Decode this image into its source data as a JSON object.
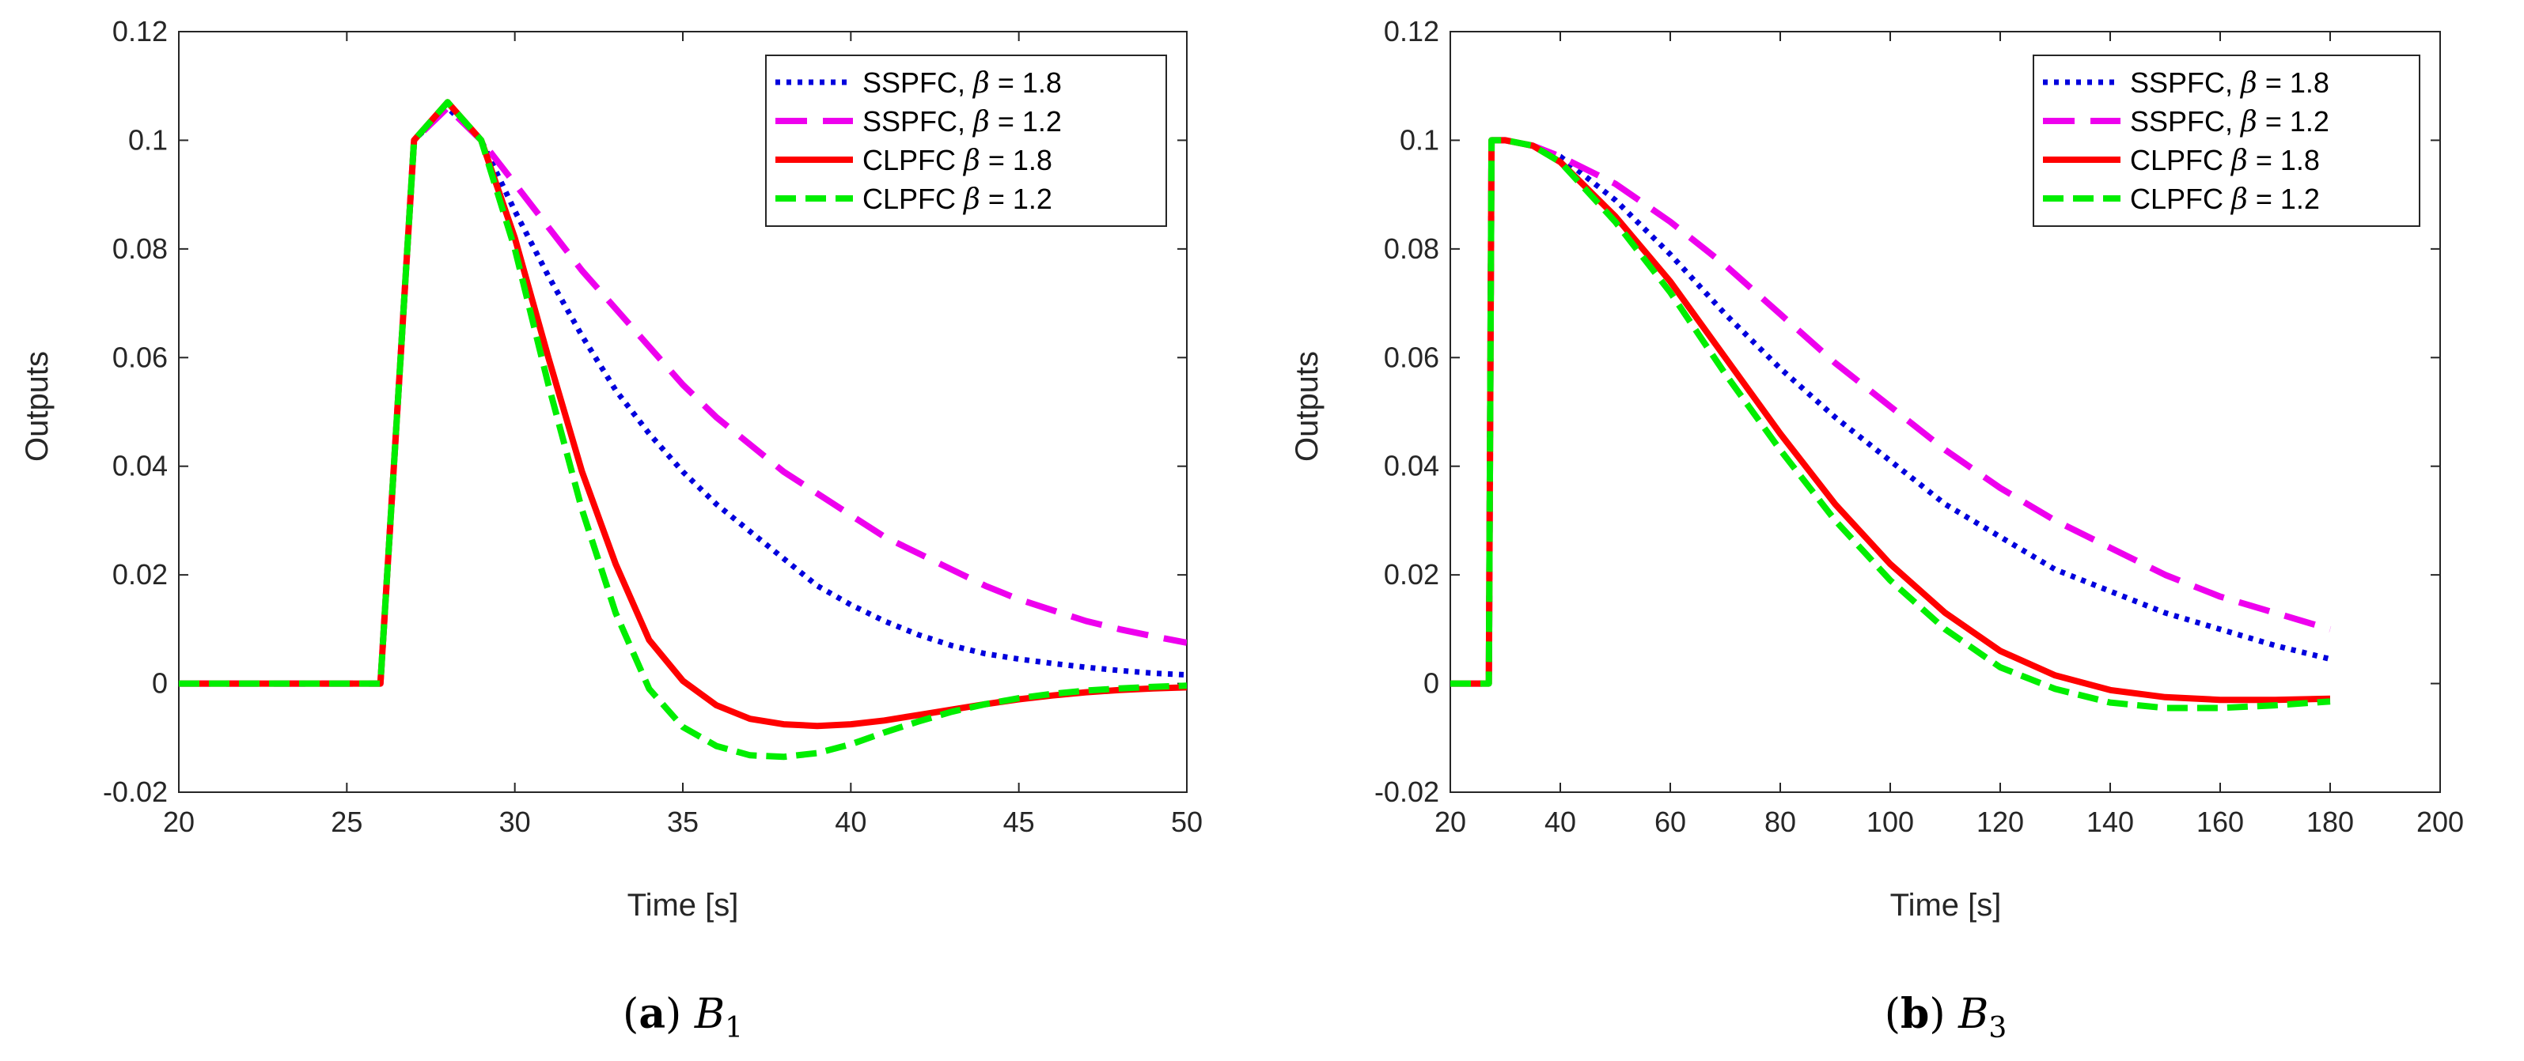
{
  "colors": {
    "ssp18": "#0000dd",
    "ssp12": "#ee00ee",
    "cl18": "#ff0000",
    "cl12": "#00ee00",
    "axis": "#262626"
  },
  "chart_data": [
    {
      "type": "line",
      "panel": "a",
      "caption": {
        "letter": "a",
        "symbol": "B",
        "subscript": "1"
      },
      "xlabel": "Time [s]",
      "ylabel": "Outputs",
      "xlim": [
        20,
        50
      ],
      "ylim": [
        -0.02,
        0.12
      ],
      "xticks": [
        20,
        25,
        30,
        35,
        40,
        45,
        50
      ],
      "xtick_labels": [
        "20",
        "25",
        "30",
        "35",
        "40",
        "45",
        "50"
      ],
      "yticks": [
        -0.02,
        0,
        0.02,
        0.04,
        0.06,
        0.08,
        0.1,
        0.12
      ],
      "ytick_labels": [
        "-0.02",
        "0",
        "0.02",
        "0.04",
        "0.06",
        "0.08",
        "0.1",
        "0.12"
      ],
      "legend_position": "top-right",
      "series": [
        {
          "name": "SSPFC, β = 1.8",
          "label": "SSPFC,",
          "beta": "β",
          "value": "= 1.8",
          "color": "ssp18",
          "style": "dotted",
          "x": [
            20,
            26,
            27,
            28,
            29,
            30,
            31,
            32,
            33,
            34,
            35,
            36,
            37,
            38,
            39,
            40,
            41,
            42,
            43,
            44,
            45,
            46,
            47,
            48,
            49,
            50
          ],
          "y": [
            0,
            0,
            0.1,
            0.106,
            0.1,
            0.087,
            0.075,
            0.064,
            0.054,
            0.046,
            0.039,
            0.033,
            0.028,
            0.023,
            0.018,
            0.0145,
            0.0115,
            0.009,
            0.007,
            0.0055,
            0.0045,
            0.0037,
            0.003,
            0.0024,
            0.0019,
            0.0016
          ]
        },
        {
          "name": "SSPFC, β = 1.2",
          "label": "SSPFC,",
          "beta": "β",
          "value": "= 1.2",
          "color": "ssp12",
          "style": "dashed-long",
          "x": [
            20,
            26,
            27,
            28,
            29,
            30,
            31,
            32,
            33,
            34,
            35,
            36,
            37,
            38,
            39,
            40,
            41,
            42,
            43,
            44,
            45,
            46,
            47,
            48,
            49,
            50
          ],
          "y": [
            0,
            0,
            0.1,
            0.106,
            0.1,
            0.092,
            0.084,
            0.076,
            0.069,
            0.062,
            0.055,
            0.049,
            0.044,
            0.039,
            0.035,
            0.031,
            0.027,
            0.024,
            0.021,
            0.018,
            0.0155,
            0.0135,
            0.0115,
            0.01,
            0.0087,
            0.0075
          ]
        },
        {
          "name": "CLPFC β = 1.8",
          "label": "CLPFC",
          "beta": "β",
          "value": "= 1.8",
          "color": "cl18",
          "style": "solid",
          "x": [
            20,
            26,
            27,
            28,
            29,
            30,
            31,
            32,
            33,
            34,
            35,
            36,
            37,
            38,
            39,
            40,
            41,
            42,
            43,
            44,
            45,
            46,
            47,
            48,
            49,
            50
          ],
          "y": [
            0,
            0,
            0.1,
            0.107,
            0.1,
            0.082,
            0.06,
            0.039,
            0.022,
            0.008,
            0.0005,
            -0.004,
            -0.0065,
            -0.0075,
            -0.0078,
            -0.0075,
            -0.0068,
            -0.0058,
            -0.0048,
            -0.0038,
            -0.0029,
            -0.0022,
            -0.0016,
            -0.0012,
            -0.0009,
            -0.0007
          ]
        },
        {
          "name": "CLPFC β = 1.2",
          "label": "CLPFC",
          "beta": "β",
          "value": "= 1.2",
          "color": "cl12",
          "style": "dashed",
          "x": [
            20,
            26,
            27,
            28,
            29,
            30,
            31,
            32,
            33,
            34,
            35,
            36,
            37,
            38,
            39,
            40,
            41,
            42,
            43,
            44,
            45,
            46,
            47,
            48,
            49,
            50
          ],
          "y": [
            0,
            0,
            0.1,
            0.107,
            0.1,
            0.08,
            0.055,
            0.032,
            0.013,
            -0.001,
            -0.008,
            -0.0115,
            -0.0132,
            -0.0135,
            -0.0128,
            -0.0112,
            -0.009,
            -0.007,
            -0.0052,
            -0.0038,
            -0.0027,
            -0.0019,
            -0.0013,
            -0.0009,
            -0.0006,
            -0.0004
          ]
        }
      ]
    },
    {
      "type": "line",
      "panel": "b",
      "caption": {
        "letter": "b",
        "symbol": "B",
        "subscript": "3"
      },
      "xlabel": "Time [s]",
      "ylabel": "Outputs",
      "xlim": [
        20,
        200
      ],
      "ylim": [
        -0.02,
        0.12
      ],
      "xticks": [
        20,
        40,
        60,
        80,
        100,
        120,
        140,
        160,
        180,
        200
      ],
      "xtick_labels": [
        "20",
        "40",
        "60",
        "80",
        "100",
        "120",
        "140",
        "160",
        "180",
        "200"
      ],
      "yticks": [
        -0.02,
        0,
        0.02,
        0.04,
        0.06,
        0.08,
        0.1,
        0.12
      ],
      "ytick_labels": [
        "-0.02",
        "0",
        "0.02",
        "0.04",
        "0.06",
        "0.08",
        "0.1",
        "0.12"
      ],
      "legend_position": "top-right",
      "series": [
        {
          "name": "SSPFC, β = 1.8",
          "label": "SSPFC,",
          "beta": "β",
          "value": "= 1.8",
          "color": "ssp18",
          "style": "dotted",
          "x": [
            20,
            27,
            27.5,
            30,
            35,
            40,
            50,
            60,
            70,
            80,
            90,
            100,
            110,
            120,
            130,
            140,
            150,
            160,
            170,
            180
          ],
          "y": [
            0,
            0,
            0.1,
            0.1,
            0.099,
            0.097,
            0.089,
            0.079,
            0.068,
            0.058,
            0.049,
            0.041,
            0.033,
            0.027,
            0.021,
            0.017,
            0.013,
            0.01,
            0.007,
            0.0045
          ]
        },
        {
          "name": "SSPFC, β = 1.2",
          "label": "SSPFC,",
          "beta": "β",
          "value": "= 1.2",
          "color": "ssp12",
          "style": "dashed-long",
          "x": [
            20,
            27,
            27.5,
            30,
            35,
            40,
            50,
            60,
            70,
            80,
            90,
            100,
            110,
            120,
            130,
            140,
            150,
            160,
            170,
            180
          ],
          "y": [
            0,
            0,
            0.1,
            0.1,
            0.099,
            0.097,
            0.092,
            0.085,
            0.077,
            0.068,
            0.059,
            0.051,
            0.043,
            0.036,
            0.03,
            0.025,
            0.02,
            0.016,
            0.013,
            0.01
          ]
        },
        {
          "name": "CLPFC β = 1.8",
          "label": "CLPFC",
          "beta": "β",
          "value": "= 1.8",
          "color": "cl18",
          "style": "solid",
          "x": [
            20,
            27,
            27.5,
            30,
            35,
            40,
            50,
            60,
            70,
            80,
            90,
            100,
            110,
            120,
            130,
            140,
            150,
            160,
            170,
            180
          ],
          "y": [
            0,
            0,
            0.1,
            0.1,
            0.099,
            0.096,
            0.086,
            0.074,
            0.06,
            0.046,
            0.033,
            0.022,
            0.013,
            0.006,
            0.0015,
            -0.0012,
            -0.0025,
            -0.003,
            -0.003,
            -0.0028
          ]
        },
        {
          "name": "CLPFC β = 1.2",
          "label": "CLPFC",
          "beta": "β",
          "value": "= 1.2",
          "color": "cl12",
          "style": "dashed",
          "x": [
            20,
            27,
            27.5,
            30,
            35,
            40,
            50,
            60,
            70,
            80,
            90,
            100,
            110,
            120,
            130,
            140,
            150,
            160,
            170,
            180
          ],
          "y": [
            0,
            0,
            0.1,
            0.1,
            0.099,
            0.096,
            0.085,
            0.072,
            0.057,
            0.043,
            0.03,
            0.019,
            0.01,
            0.003,
            -0.001,
            -0.0035,
            -0.0045,
            -0.0045,
            -0.004,
            -0.0033
          ]
        }
      ]
    }
  ]
}
